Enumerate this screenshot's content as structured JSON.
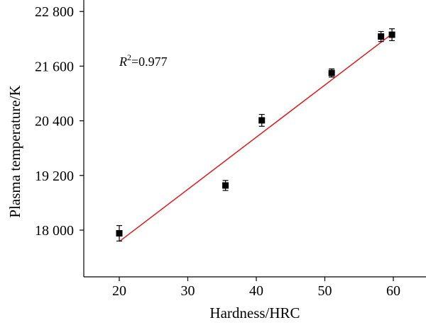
{
  "chart_data": {
    "type": "scatter",
    "xlabel": "Hardness/HRC",
    "ylabel": "Plasma temperature/K",
    "xlim": [
      15,
      64
    ],
    "ylim": [
      17000,
      23100
    ],
    "x_ticks": [
      20,
      30,
      40,
      50,
      60
    ],
    "x_tick_labels": [
      "20",
      "30",
      "40",
      "50",
      "60"
    ],
    "y_ticks": [
      18000,
      19200,
      20400,
      21600,
      22800
    ],
    "y_tick_labels": [
      "18 000",
      "19 200",
      "20 400",
      "21 600",
      "22 800"
    ],
    "points": [
      {
        "x": 20.0,
        "y": 17930,
        "err": 170
      },
      {
        "x": 35.5,
        "y": 18980,
        "err": 110
      },
      {
        "x": 40.8,
        "y": 20410,
        "err": 130
      },
      {
        "x": 51.0,
        "y": 21450,
        "err": 90
      },
      {
        "x": 58.2,
        "y": 22250,
        "err": 110
      },
      {
        "x": 59.8,
        "y": 22290,
        "err": 130
      }
    ],
    "fit_line": {
      "x": [
        20,
        60
      ],
      "y": [
        17750,
        22330
      ],
      "color": "#e0191e"
    },
    "annotation": {
      "r_label": "R",
      "r_sup": "2",
      "r_value": "=0.977"
    },
    "marker_color": "#000000",
    "grid": false,
    "legend": "none"
  }
}
